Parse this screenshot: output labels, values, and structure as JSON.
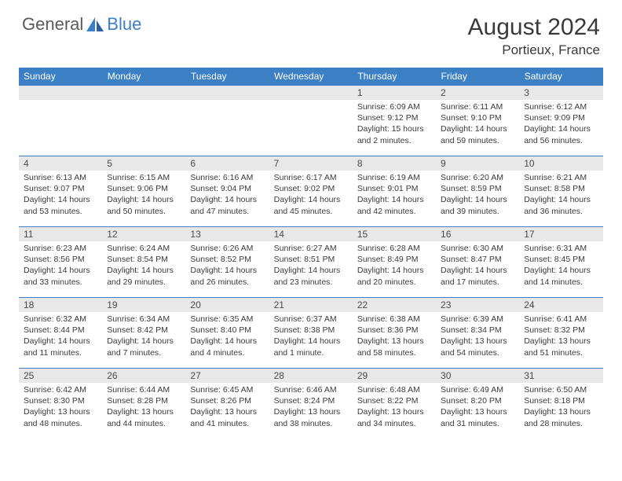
{
  "logo": {
    "part1": "General",
    "part2": "Blue"
  },
  "title": "August 2024",
  "location": "Portieux, France",
  "colors": {
    "header_bg": "#3b7fc4",
    "header_text": "#ffffff",
    "daynum_bg": "#e8e8e8",
    "text": "#3a3a3a",
    "border": "#3b7fc4"
  },
  "day_headers": [
    "Sunday",
    "Monday",
    "Tuesday",
    "Wednesday",
    "Thursday",
    "Friday",
    "Saturday"
  ],
  "weeks": [
    [
      null,
      null,
      null,
      null,
      {
        "n": "1",
        "sunrise": "6:09 AM",
        "sunset": "9:12 PM",
        "daylight": "15 hours and 2 minutes."
      },
      {
        "n": "2",
        "sunrise": "6:11 AM",
        "sunset": "9:10 PM",
        "daylight": "14 hours and 59 minutes."
      },
      {
        "n": "3",
        "sunrise": "6:12 AM",
        "sunset": "9:09 PM",
        "daylight": "14 hours and 56 minutes."
      }
    ],
    [
      {
        "n": "4",
        "sunrise": "6:13 AM",
        "sunset": "9:07 PM",
        "daylight": "14 hours and 53 minutes."
      },
      {
        "n": "5",
        "sunrise": "6:15 AM",
        "sunset": "9:06 PM",
        "daylight": "14 hours and 50 minutes."
      },
      {
        "n": "6",
        "sunrise": "6:16 AM",
        "sunset": "9:04 PM",
        "daylight": "14 hours and 47 minutes."
      },
      {
        "n": "7",
        "sunrise": "6:17 AM",
        "sunset": "9:02 PM",
        "daylight": "14 hours and 45 minutes."
      },
      {
        "n": "8",
        "sunrise": "6:19 AM",
        "sunset": "9:01 PM",
        "daylight": "14 hours and 42 minutes."
      },
      {
        "n": "9",
        "sunrise": "6:20 AM",
        "sunset": "8:59 PM",
        "daylight": "14 hours and 39 minutes."
      },
      {
        "n": "10",
        "sunrise": "6:21 AM",
        "sunset": "8:58 PM",
        "daylight": "14 hours and 36 minutes."
      }
    ],
    [
      {
        "n": "11",
        "sunrise": "6:23 AM",
        "sunset": "8:56 PM",
        "daylight": "14 hours and 33 minutes."
      },
      {
        "n": "12",
        "sunrise": "6:24 AM",
        "sunset": "8:54 PM",
        "daylight": "14 hours and 29 minutes."
      },
      {
        "n": "13",
        "sunrise": "6:26 AM",
        "sunset": "8:52 PM",
        "daylight": "14 hours and 26 minutes."
      },
      {
        "n": "14",
        "sunrise": "6:27 AM",
        "sunset": "8:51 PM",
        "daylight": "14 hours and 23 minutes."
      },
      {
        "n": "15",
        "sunrise": "6:28 AM",
        "sunset": "8:49 PM",
        "daylight": "14 hours and 20 minutes."
      },
      {
        "n": "16",
        "sunrise": "6:30 AM",
        "sunset": "8:47 PM",
        "daylight": "14 hours and 17 minutes."
      },
      {
        "n": "17",
        "sunrise": "6:31 AM",
        "sunset": "8:45 PM",
        "daylight": "14 hours and 14 minutes."
      }
    ],
    [
      {
        "n": "18",
        "sunrise": "6:32 AM",
        "sunset": "8:44 PM",
        "daylight": "14 hours and 11 minutes."
      },
      {
        "n": "19",
        "sunrise": "6:34 AM",
        "sunset": "8:42 PM",
        "daylight": "14 hours and 7 minutes."
      },
      {
        "n": "20",
        "sunrise": "6:35 AM",
        "sunset": "8:40 PM",
        "daylight": "14 hours and 4 minutes."
      },
      {
        "n": "21",
        "sunrise": "6:37 AM",
        "sunset": "8:38 PM",
        "daylight": "14 hours and 1 minute."
      },
      {
        "n": "22",
        "sunrise": "6:38 AM",
        "sunset": "8:36 PM",
        "daylight": "13 hours and 58 minutes."
      },
      {
        "n": "23",
        "sunrise": "6:39 AM",
        "sunset": "8:34 PM",
        "daylight": "13 hours and 54 minutes."
      },
      {
        "n": "24",
        "sunrise": "6:41 AM",
        "sunset": "8:32 PM",
        "daylight": "13 hours and 51 minutes."
      }
    ],
    [
      {
        "n": "25",
        "sunrise": "6:42 AM",
        "sunset": "8:30 PM",
        "daylight": "13 hours and 48 minutes."
      },
      {
        "n": "26",
        "sunrise": "6:44 AM",
        "sunset": "8:28 PM",
        "daylight": "13 hours and 44 minutes."
      },
      {
        "n": "27",
        "sunrise": "6:45 AM",
        "sunset": "8:26 PM",
        "daylight": "13 hours and 41 minutes."
      },
      {
        "n": "28",
        "sunrise": "6:46 AM",
        "sunset": "8:24 PM",
        "daylight": "13 hours and 38 minutes."
      },
      {
        "n": "29",
        "sunrise": "6:48 AM",
        "sunset": "8:22 PM",
        "daylight": "13 hours and 34 minutes."
      },
      {
        "n": "30",
        "sunrise": "6:49 AM",
        "sunset": "8:20 PM",
        "daylight": "13 hours and 31 minutes."
      },
      {
        "n": "31",
        "sunrise": "6:50 AM",
        "sunset": "8:18 PM",
        "daylight": "13 hours and 28 minutes."
      }
    ]
  ],
  "labels": {
    "sunrise": "Sunrise:",
    "sunset": "Sunset:",
    "daylight": "Daylight:"
  }
}
